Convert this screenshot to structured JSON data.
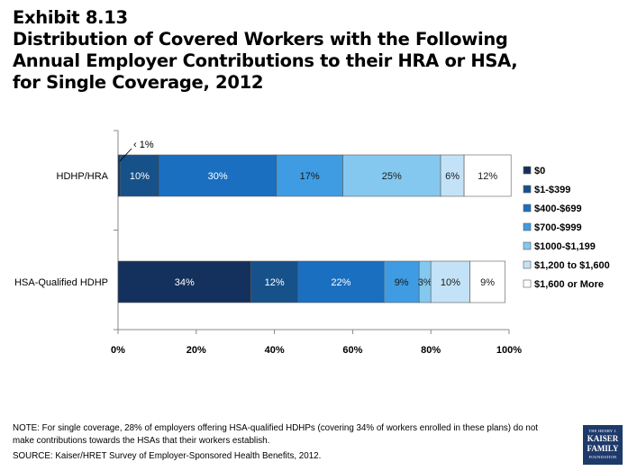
{
  "exhibit": {
    "title_line1": "Exhibit 8.13",
    "title_line2": "Distribution of Covered Workers with the Following",
    "title_line3": "Annual Employer Contributions to their HRA or HSA,",
    "title_line4": "for Single Coverage, 2012"
  },
  "chart_data": {
    "type": "bar",
    "orientation": "horizontal",
    "stacked": true,
    "title": "Distribution of Covered Workers with the Following Annual Employer Contributions to their HRA or HSA, for Single Coverage, 2012",
    "xlabel": "",
    "ylabel": "",
    "xlim": [
      0,
      100
    ],
    "x_ticks": [
      "0%",
      "20%",
      "40%",
      "60%",
      "80%",
      "100%"
    ],
    "grid": false,
    "legend_position": "right",
    "categories": [
      "HDHP/HRA",
      "HSA-Qualified HDHP"
    ],
    "series": [
      {
        "name": "$0",
        "color": "#14305c",
        "values": [
          0.5,
          34
        ],
        "labels": [
          "",
          "34%"
        ],
        "label_color": "#ffffff"
      },
      {
        "name": "$1-$399",
        "color": "#17518a",
        "values": [
          10,
          12
        ],
        "labels": [
          "10%",
          "12%"
        ],
        "label_color": "#ffffff"
      },
      {
        "name": "$400-$699",
        "color": "#1a6fc0",
        "values": [
          30,
          22
        ],
        "labels": [
          "30%",
          "22%"
        ],
        "label_color": "#ffffff"
      },
      {
        "name": "$700-$999",
        "color": "#3f9ce3",
        "values": [
          17,
          9
        ],
        "labels": [
          "17%",
          "9%"
        ],
        "label_color": "#1a1a1a"
      },
      {
        "name": "$1000-$1,199",
        "color": "#85c8ef",
        "values": [
          25,
          3
        ],
        "labels": [
          "25%",
          "3%"
        ],
        "label_color": "#1a1a1a"
      },
      {
        "name": "$1,200 to $1,600",
        "color": "#c3e2f7",
        "values": [
          6,
          10
        ],
        "labels": [
          "6%",
          "10%"
        ],
        "label_color": "#1a1a1a"
      },
      {
        "name": "$1,600 or More",
        "color": "#ffffff",
        "values": [
          12,
          9
        ],
        "labels": [
          "12%",
          "9%"
        ],
        "label_color": "#1a1a1a"
      }
    ],
    "annotations": [
      {
        "text": "‹ 1%",
        "category": "HDHP/HRA",
        "series": "$0"
      }
    ]
  },
  "footer": {
    "note_line1": "NOTE: For single coverage, 28% of employers offering HSA-qualified HDHPs (covering 34% of workers enrolled in these plans) do not",
    "note_line2": "make contributions towards the HSAs that their workers establish.",
    "source": "SOURCE:  Kaiser/HRET Survey of Employer-Sponsored Health Benefits, 2012."
  },
  "logo": {
    "line1": "THE HENRY J.",
    "line2": "KAISER",
    "line3": "FAMILY",
    "line4": "FOUNDATION"
  }
}
